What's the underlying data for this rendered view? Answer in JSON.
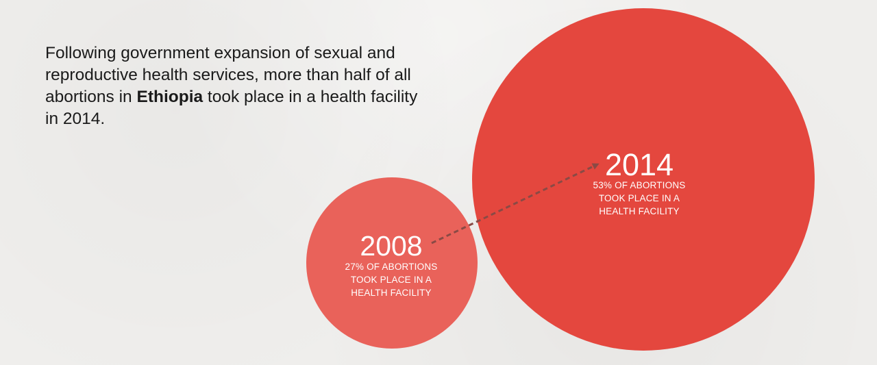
{
  "headline": {
    "before": "Following government expansion of sexual and reproductive health services, more than half of all abortions in ",
    "country": "Ethiopia",
    "after": " took place in a health facility in 2014."
  },
  "colors": {
    "circle_2008": "#e9625a",
    "circle_2014": "#e4473e",
    "arrow": "#8a4a45",
    "text_dark": "#1a1a1a",
    "background": "#efeeec"
  },
  "chart_data": {
    "type": "bubble",
    "metric": "Share of abortions that took place in a health facility",
    "unit": "%",
    "points": [
      {
        "year": "2008",
        "value": 27,
        "label_lines": [
          "27% OF ABORTIONS",
          "TOOK PLACE IN A",
          "HEALTH FACILITY"
        ]
      },
      {
        "year": "2014",
        "value": 53,
        "label_lines": [
          "53% OF ABORTIONS",
          "TOOK PLACE IN A",
          "HEALTH FACILITY"
        ]
      }
    ],
    "annotations": [
      "dashed arrow from 2008 to 2014"
    ]
  }
}
